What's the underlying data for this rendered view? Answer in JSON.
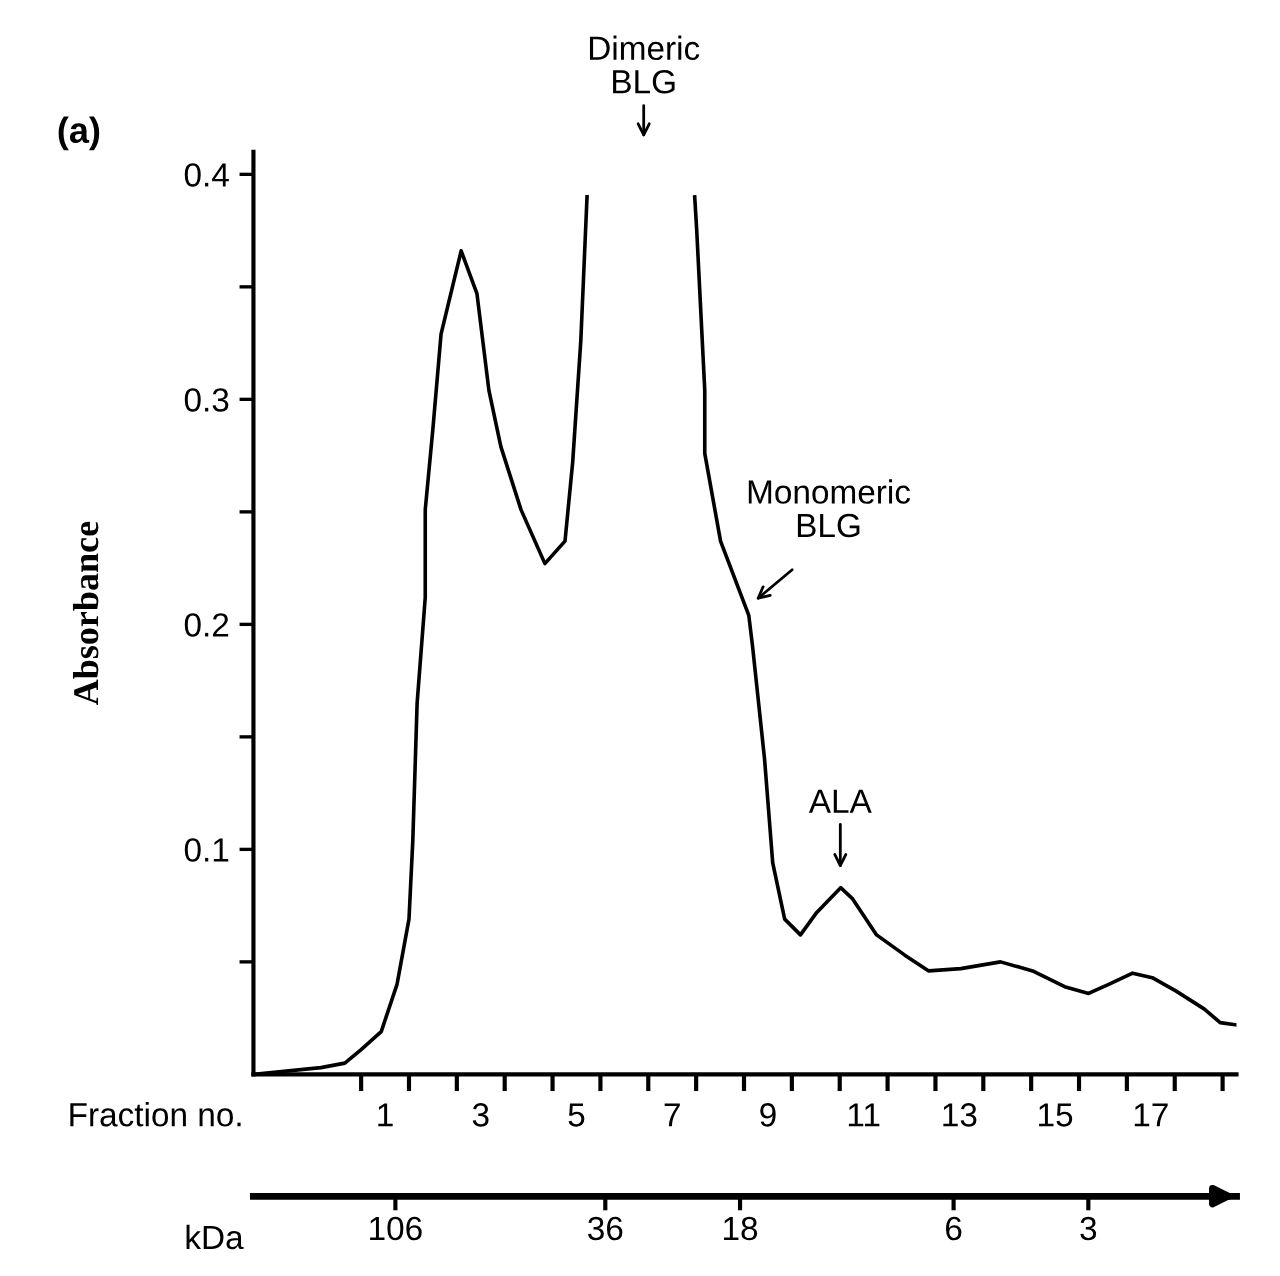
{
  "chart_data": {
    "type": "line",
    "annotations": [
      "(a)",
      "Dimeric\nBLG",
      "Monomeric\nBLG",
      "ALA"
    ],
    "xlabel": "Fraction no.",
    "ylabel": "Absorbance",
    "x2label": "kDa",
    "series": [
      {
        "color": "#000000",
        "x": [
          -1.75,
          -0.34,
          0.16,
          0.5,
          0.92,
          1.25,
          1.5,
          1.58,
          1.67,
          1.84,
          1.84,
          2.0,
          2.17,
          2.59,
          2.92,
          3.17,
          3.42,
          3.84,
          4.34,
          4.76,
          4.92,
          5.09,
          5.22,
          6.3,
          7.47,
          7.51,
          7.68,
          7.68,
          8.01,
          8.6,
          8.68,
          8.93,
          9.1,
          9.35,
          9.68,
          10.02,
          10.52,
          10.77,
          11.27,
          11.86,
          12.36,
          13.03,
          13.86,
          14.53,
          15.2,
          15.7,
          16.12,
          16.62,
          17.03,
          17.53,
          18.12,
          18.45,
          18.79
        ],
        "values": [
          0.0,
          0.003,
          0.005,
          0.011,
          0.019,
          0.04,
          0.069,
          0.104,
          0.165,
          0.212,
          0.251,
          0.287,
          0.329,
          0.366,
          0.347,
          0.304,
          0.279,
          0.251,
          0.227,
          0.237,
          0.272,
          0.326,
          0.39,
          null,
          0.39,
          0.376,
          0.304,
          0.276,
          0.237,
          0.204,
          0.19,
          0.14,
          0.094,
          0.069,
          0.062,
          0.072,
          0.083,
          0.078,
          0.062,
          0.053,
          0.046,
          0.047,
          0.05,
          0.046,
          0.039,
          0.036,
          0.04,
          0.045,
          0.043,
          0.037,
          0.029,
          0.023,
          0.022
        ]
      }
    ],
    "xlim": [
      -1.75,
      18.79
    ],
    "xticks": [
      {
        "value": 0.5,
        "label": null
      },
      {
        "value": 1,
        "label": "1"
      },
      {
        "value": 1.5,
        "label": null
      },
      {
        "value": 2.5,
        "label": null
      },
      {
        "value": 3,
        "label": "3"
      },
      {
        "value": 3.5,
        "label": null
      },
      {
        "value": 4.5,
        "label": null
      },
      {
        "value": 5,
        "label": "5"
      },
      {
        "value": 5.5,
        "label": null
      },
      {
        "value": 6.5,
        "label": null
      },
      {
        "value": 7,
        "label": "7"
      },
      {
        "value": 7.5,
        "label": null
      },
      {
        "value": 8.5,
        "label": null
      },
      {
        "value": 9,
        "label": "9"
      },
      {
        "value": 9.5,
        "label": null
      },
      {
        "value": 10.5,
        "label": null
      },
      {
        "value": 11,
        "label": "11"
      },
      {
        "value": 11.5,
        "label": null
      },
      {
        "value": 12.5,
        "label": null
      },
      {
        "value": 13,
        "label": "13"
      },
      {
        "value": 13.5,
        "label": null
      },
      {
        "value": 14.5,
        "label": null
      },
      {
        "value": 15,
        "label": "15"
      },
      {
        "value": 15.5,
        "label": null
      },
      {
        "value": 16.5,
        "label": null
      },
      {
        "value": 17,
        "label": "17"
      },
      {
        "value": 17.5,
        "label": null
      },
      {
        "value": 18.5,
        "label": null
      }
    ],
    "ylim": [
      0,
      0.41
    ],
    "yticks": [
      {
        "value": 0.05,
        "label": null
      },
      0.1,
      {
        "value": 0.15,
        "label": null
      },
      0.2,
      {
        "value": 0.25,
        "label": null
      },
      0.3,
      {
        "value": 0.35,
        "label": null
      },
      0.4
    ],
    "x2lim": [
      220,
      1.4
    ],
    "log": "x2",
    "x2ticks": [
      106,
      36,
      18,
      6,
      3
    ],
    "grid": false,
    "legend": false,
    "marker": "none",
    "line_style": "solid"
  }
}
